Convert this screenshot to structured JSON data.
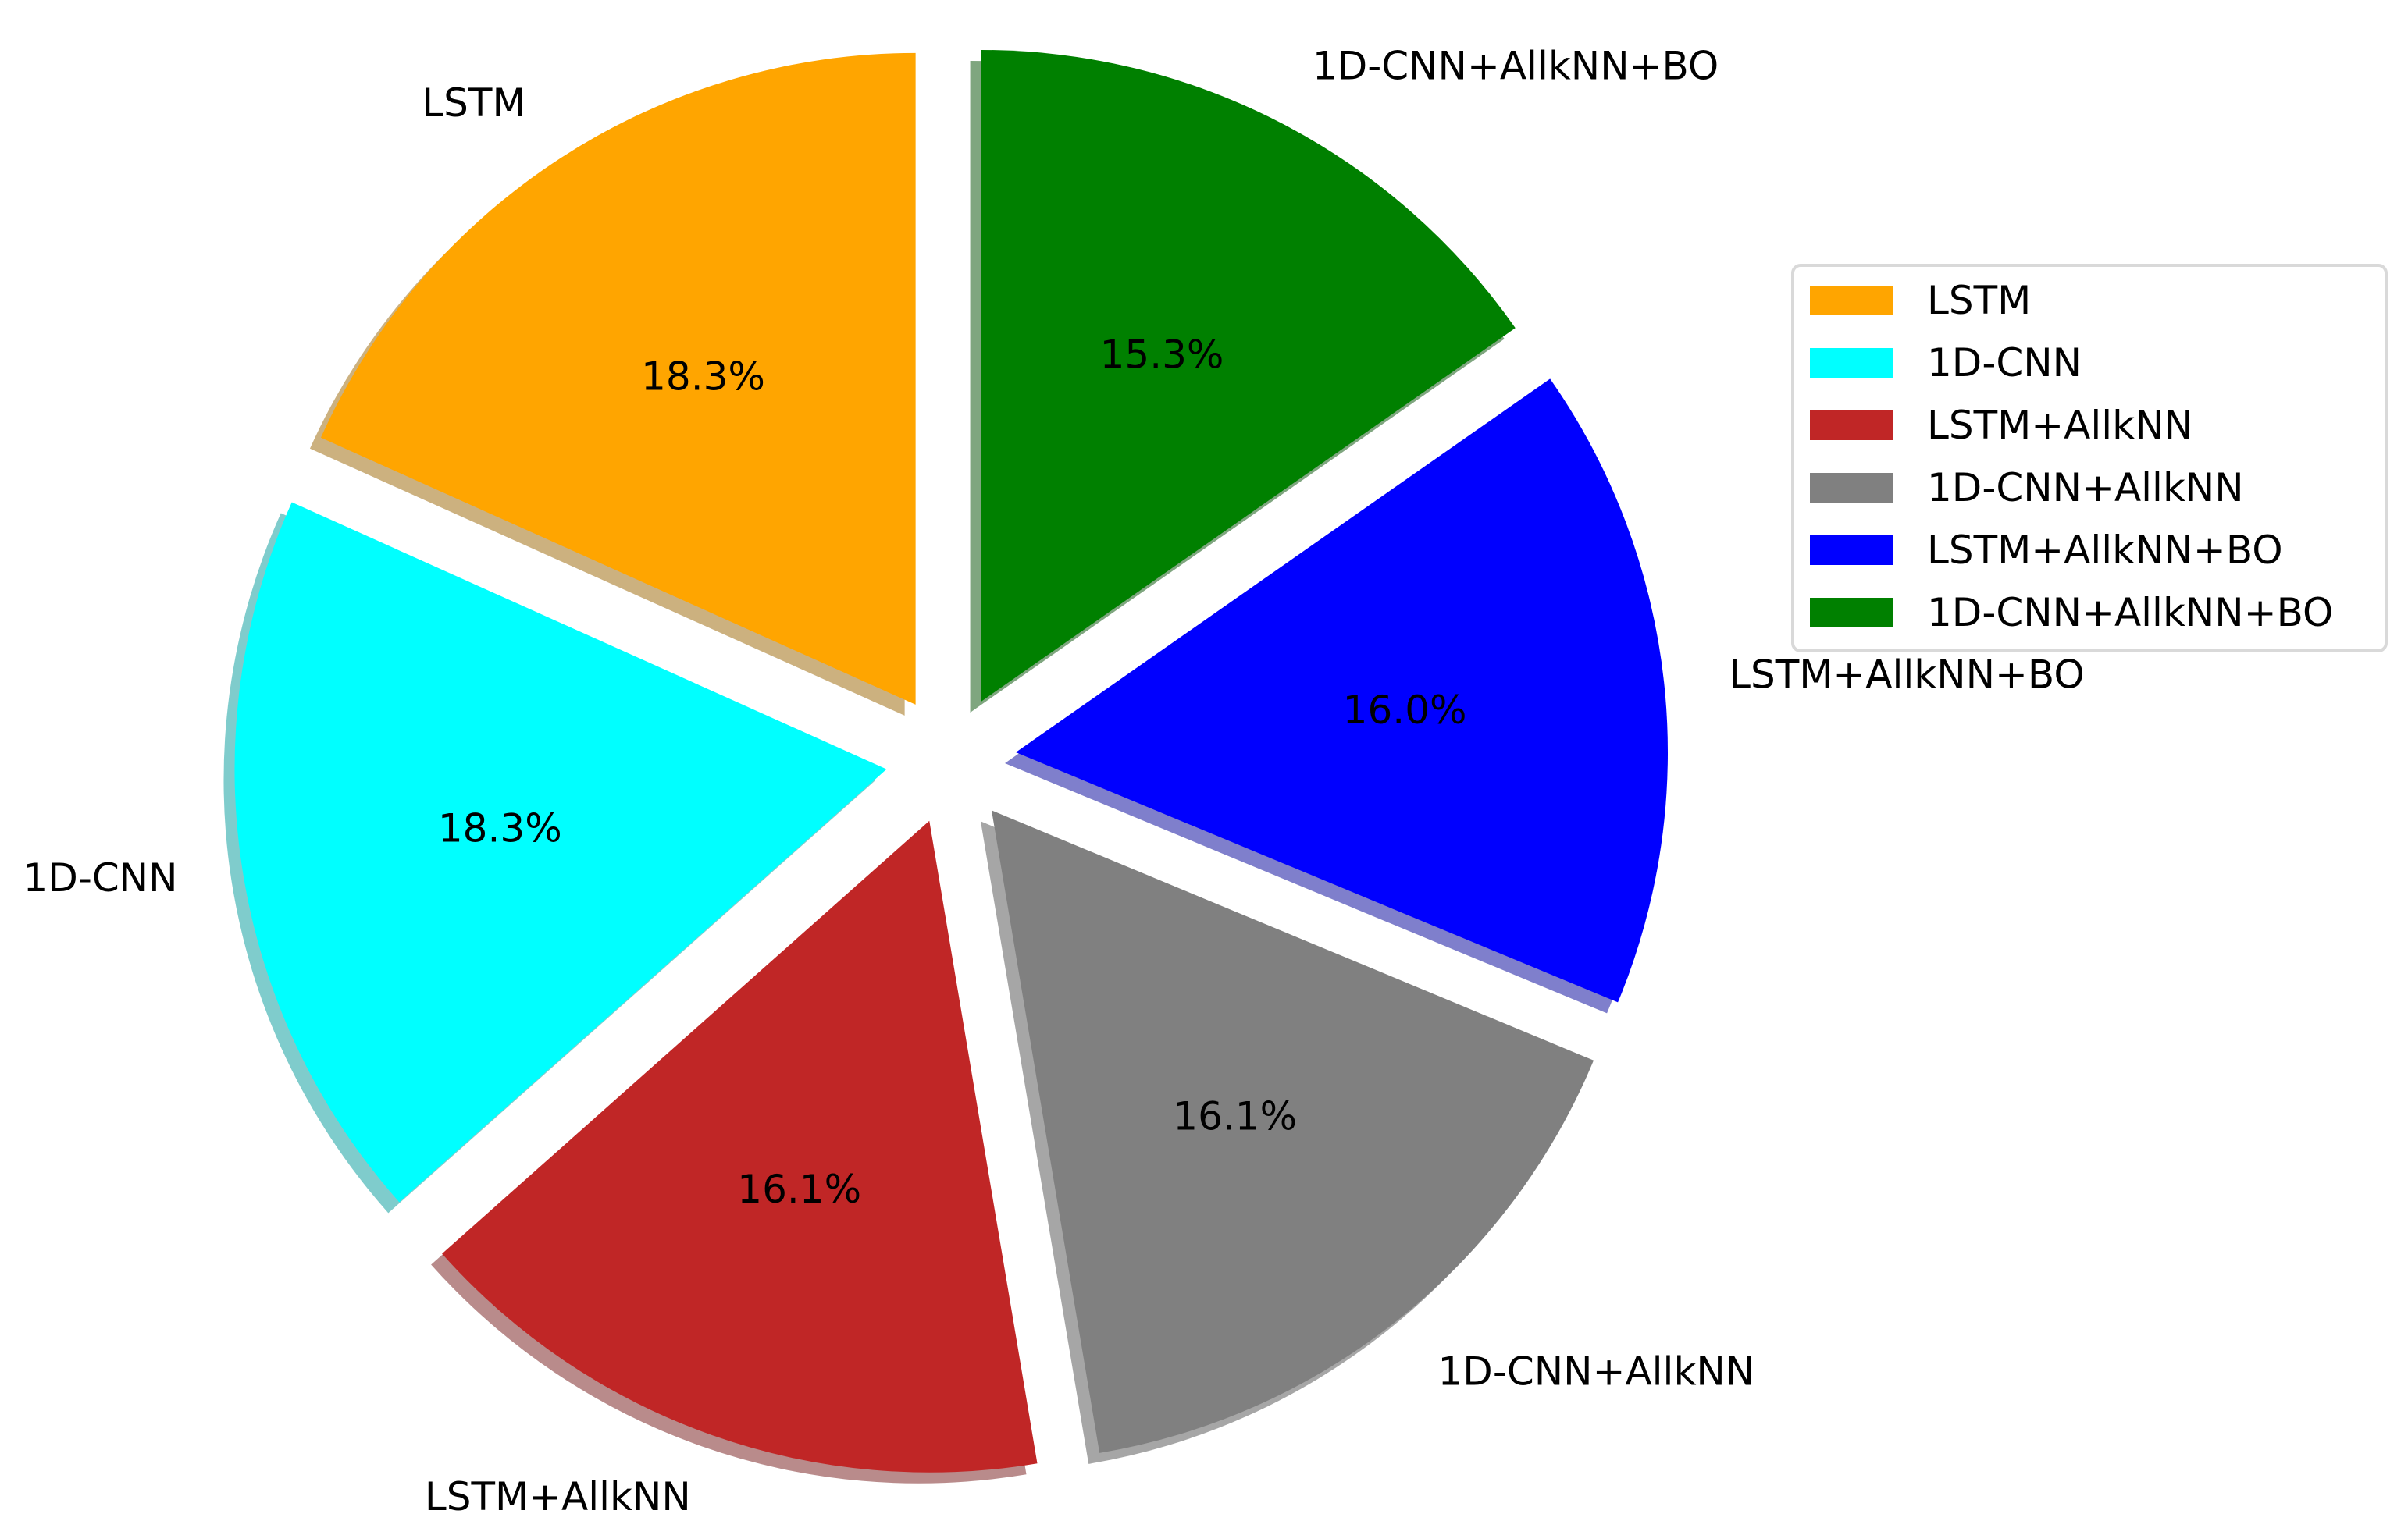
{
  "chart_data": {
    "type": "pie",
    "labels": [
      "LSTM",
      "1D-CNN",
      "LSTM+AllkNN",
      "1D-CNN+AllkNN",
      "LSTM+AllkNN+BO",
      "1D-CNN+AllkNN+BO"
    ],
    "values": [
      18.3,
      18.3,
      16.1,
      16.1,
      16.0,
      15.3
    ],
    "pct_labels": [
      "18.3%",
      "18.3%",
      "16.1%",
      "16.1%",
      "16.0%",
      "15.3%"
    ],
    "colors": [
      "#FFA500",
      "#00FFFF",
      "#C02626",
      "#808080",
      "#0000FF",
      "#008000"
    ],
    "start_angle_deg": 90,
    "direction": "counterclockwise",
    "exploded": true,
    "shadow": true,
    "legend": {
      "placement": "right",
      "entries": [
        "LSTM",
        "1D-CNN",
        "LSTM+AllkNN",
        "1D-CNN+AllkNN",
        "LSTM+AllkNN+BO",
        "1D-CNN+AllkNN+BO"
      ]
    }
  }
}
